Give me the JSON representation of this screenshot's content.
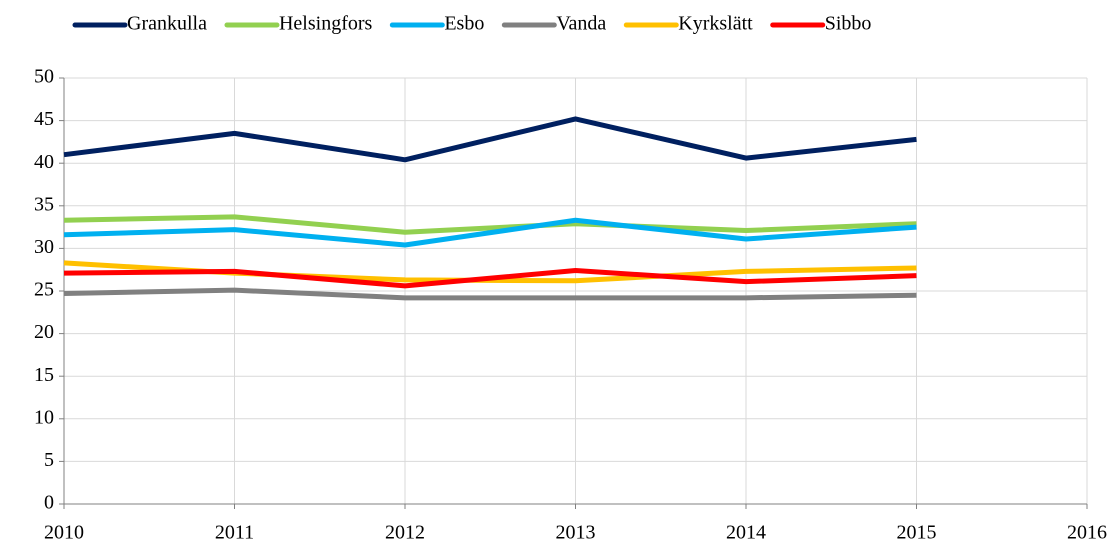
{
  "chart_data": {
    "type": "line",
    "x": [
      2010,
      2011,
      2012,
      2013,
      2014,
      2015
    ],
    "series": [
      {
        "name": "Grankulla",
        "color": "#002060",
        "values": [
          41.0,
          43.5,
          40.4,
          45.2,
          40.6,
          42.8
        ]
      },
      {
        "name": "Helsingfors",
        "color": "#92d050",
        "values": [
          33.3,
          33.7,
          31.9,
          32.9,
          32.1,
          32.9
        ]
      },
      {
        "name": "Esbo",
        "color": "#00b0f0",
        "values": [
          31.6,
          32.2,
          30.4,
          33.3,
          31.1,
          32.5
        ]
      },
      {
        "name": "Vanda",
        "color": "#808080",
        "values": [
          24.7,
          25.1,
          24.2,
          24.2,
          24.2,
          24.5
        ]
      },
      {
        "name": "Kyrkslätt",
        "color": "#ffc000",
        "values": [
          28.3,
          27.1,
          26.3,
          26.2,
          27.3,
          27.7
        ]
      },
      {
        "name": "Sibbo",
        "color": "#ff0000",
        "values": [
          27.1,
          27.3,
          25.6,
          27.4,
          26.1,
          26.8
        ]
      }
    ],
    "xlim": [
      2010,
      2016
    ],
    "xticks": [
      2010,
      2011,
      2012,
      2013,
      2014,
      2015,
      2016
    ],
    "ylim": [
      0,
      50
    ],
    "yticks": [
      0,
      5,
      10,
      15,
      20,
      25,
      30,
      35,
      40,
      45,
      50
    ],
    "grid": true,
    "legend": "top"
  }
}
